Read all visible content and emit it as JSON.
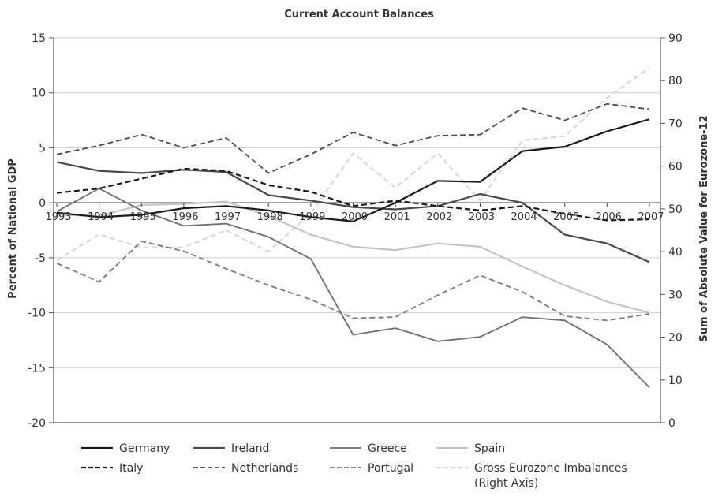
{
  "chart_data": {
    "type": "line",
    "title": "Current Account Balances",
    "ylabel": "Percent of National GDP",
    "y2label": "Sum of Absolute Value for Eurozone-12",
    "ylim": [
      -20,
      15
    ],
    "y2lim": [
      0,
      90
    ],
    "yticks": [
      -20,
      -15,
      -10,
      -5,
      0,
      5,
      10,
      15
    ],
    "y2ticks": [
      0,
      10,
      20,
      30,
      40,
      50,
      60,
      70,
      80,
      90
    ],
    "x": [
      "1993",
      "1994",
      "1995",
      "1996",
      "1997",
      "1998",
      "1999",
      "2000",
      "2001",
      "2002",
      "2003",
      "2004",
      "2005",
      "2006",
      "2007"
    ],
    "grid": "horizontal",
    "legend_position": "bottom",
    "series": [
      {
        "key": "germany",
        "name": "Germany",
        "axis": "left",
        "color": "#1a1a1a",
        "dash": "solid",
        "width": 2.2,
        "values": [
          -0.9,
          -1.3,
          -1.1,
          -0.5,
          -0.3,
          -0.7,
          -1.3,
          -1.7,
          0.0,
          2.0,
          1.9,
          4.7,
          5.1,
          6.5,
          7.6
        ]
      },
      {
        "key": "ireland",
        "name": "Ireland",
        "axis": "left",
        "color": "#4a4a4a",
        "dash": "solid",
        "width": 2.2,
        "values": [
          3.7,
          2.9,
          2.7,
          3.0,
          2.8,
          0.7,
          0.2,
          -0.4,
          -0.6,
          -0.3,
          0.8,
          0.0,
          -2.9,
          -3.7,
          -5.4
        ]
      },
      {
        "key": "greece",
        "name": "Greece",
        "axis": "left",
        "color": "#6e6e6e",
        "dash": "solid",
        "width": 1.8,
        "values": [
          -0.8,
          1.3,
          -0.7,
          -2.1,
          -1.9,
          -3.1,
          -5.1,
          -12.0,
          -11.4,
          -12.6,
          -12.2,
          -10.4,
          -10.7,
          -12.9,
          -16.8
        ]
      },
      {
        "key": "spain",
        "name": "Spain",
        "axis": "left",
        "color": "#c4c4c4",
        "dash": "solid",
        "width": 2.2,
        "values": [
          -1.1,
          -1.2,
          -0.2,
          -0.1,
          0.1,
          -1.2,
          -2.9,
          -4.0,
          -4.3,
          -3.7,
          -4.0,
          -5.8,
          -7.5,
          -9.0,
          -10.0
        ]
      },
      {
        "key": "italy",
        "name": "Italy",
        "axis": "left",
        "color": "#1a1a1a",
        "dash": "dashed",
        "width": 2.2,
        "values": [
          0.9,
          1.3,
          2.2,
          3.1,
          2.9,
          1.6,
          1.0,
          -0.3,
          0.2,
          -0.3,
          -0.7,
          -0.3,
          -1.0,
          -1.6,
          -1.5
        ]
      },
      {
        "key": "netherlands",
        "name": "Netherlands",
        "axis": "left",
        "color": "#4a4a4a",
        "dash": "dashed",
        "width": 1.8,
        "values": [
          4.4,
          5.2,
          6.2,
          5.0,
          5.9,
          2.7,
          4.4,
          6.4,
          5.2,
          6.1,
          6.2,
          8.6,
          7.5,
          9.0,
          8.5
        ]
      },
      {
        "key": "portugal",
        "name": "Portugal",
        "axis": "left",
        "color": "#7a7a7a",
        "dash": "dashed",
        "width": 1.8,
        "values": [
          -5.5,
          -7.2,
          -3.5,
          -4.4,
          -6.0,
          -7.5,
          -8.8,
          -10.5,
          -10.4,
          -8.4,
          -6.6,
          -8.1,
          -10.3,
          -10.7,
          -10.1
        ]
      },
      {
        "key": "gross",
        "name": "Gross Eurozone Imbalances (Right Axis)",
        "axis": "right",
        "color": "#d9d9d9",
        "dash": "dashed",
        "width": 2.2,
        "values": [
          38,
          44,
          41,
          41,
          45,
          40,
          49,
          63,
          55,
          63,
          52,
          66,
          67,
          76,
          83
        ]
      }
    ],
    "legend_rows": [
      [
        "germany",
        "ireland",
        "greece",
        "spain"
      ],
      [
        "italy",
        "netherlands",
        "portugal",
        "gross"
      ]
    ],
    "legend_labels": {
      "gross": [
        "Gross Eurozone Imbalances",
        "(Right Axis)"
      ]
    }
  }
}
